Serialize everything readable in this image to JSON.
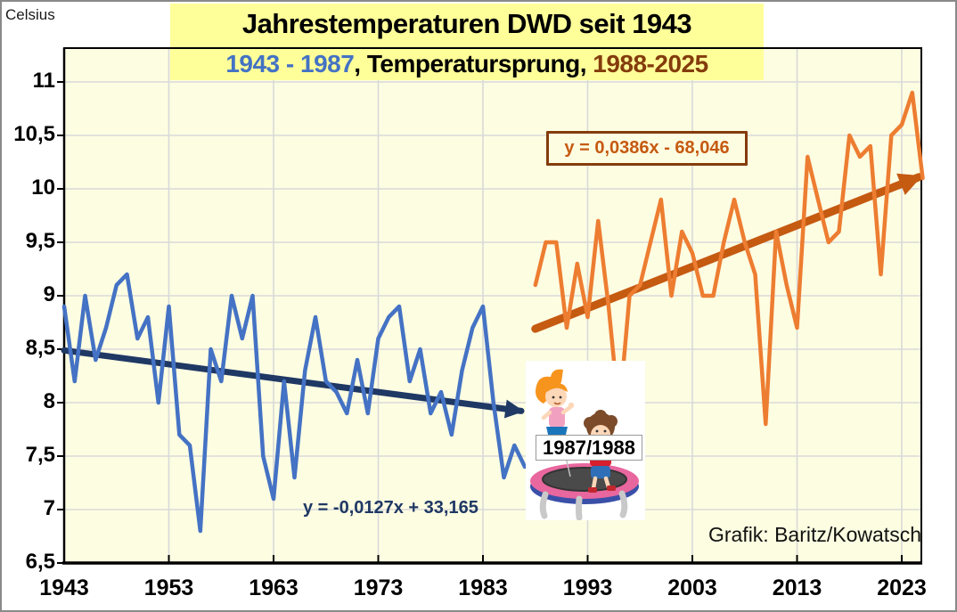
{
  "chart_data": {
    "type": "line",
    "title": "Jahrestemperaturen DWD seit 1943",
    "subtitle_parts": [
      {
        "text": "1943 - 1987",
        "color": "#4472C4"
      },
      {
        "text": ", Temperatursprung, ",
        "color": "#000000"
      },
      {
        "text": "1988-2025",
        "color": "#843C0C"
      }
    ],
    "y_axis": {
      "title": "Celsius",
      "values": [
        11,
        10.5,
        10,
        9.5,
        9,
        8.5,
        8,
        7.5,
        7,
        6.5
      ],
      "labels": [
        "11",
        "10,5",
        "10",
        "9,5",
        "9",
        "8,5",
        "8",
        "7,5",
        "7",
        "6,5"
      ],
      "min": 6.5,
      "max": 11
    },
    "x_axis": {
      "years": [
        1943,
        1953,
        1963,
        1973,
        1983,
        1993,
        2003,
        2013,
        2023
      ],
      "labels": [
        "1943",
        "1953",
        "1963",
        "1973",
        "1983",
        "1993",
        "2003",
        "2013",
        "2023"
      ],
      "min": 1943,
      "max": 2025
    },
    "grid": true,
    "series": [
      {
        "name": "1943 - 1987",
        "color": "#4472C4",
        "start_year": 1943,
        "values": [
          8.9,
          8.2,
          9.0,
          8.4,
          8.7,
          9.1,
          9.2,
          8.6,
          8.8,
          8.0,
          8.9,
          7.7,
          7.6,
          6.8,
          8.5,
          8.2,
          9.0,
          8.6,
          9.0,
          7.5,
          7.1,
          8.2,
          7.3,
          8.3,
          8.8,
          8.2,
          8.1,
          7.9,
          8.4,
          7.9,
          8.6,
          8.8,
          8.9,
          8.2,
          8.5,
          7.9,
          8.1,
          7.7,
          8.3,
          8.7,
          8.9,
          8.0,
          7.3,
          7.6,
          7.4
        ]
      },
      {
        "name": "1988-2025",
        "color": "#ED7D31",
        "start_year": 1988,
        "values": [
          9.1,
          9.5,
          9.5,
          8.7,
          9.3,
          8.8,
          9.7,
          8.9,
          7.9,
          9.0,
          9.1,
          9.5,
          9.9,
          9.0,
          9.6,
          9.4,
          9.0,
          9.0,
          9.5,
          9.9,
          9.5,
          9.2,
          7.8,
          9.6,
          9.1,
          8.7,
          10.3,
          9.9,
          9.5,
          9.6,
          10.5,
          10.3,
          10.4,
          9.2,
          10.5,
          10.6,
          10.9,
          10.1
        ]
      }
    ],
    "trends": [
      {
        "label": "y = -0,0127x + 33,165",
        "slope": -0.0127,
        "intercept": 33.165,
        "year_start": 1943,
        "year_end": 1987,
        "color": "#1F3864",
        "width": 7
      },
      {
        "label": "y = 0,0386x - 68,046",
        "slope": 0.0386,
        "intercept": -68.046,
        "year_start": 1988,
        "year_end": 2025,
        "color": "#C55A11",
        "width": 9
      }
    ],
    "annotations": {
      "jump_label": "1987/1988",
      "credit": "Grafik: Baritz/Kowatsch"
    },
    "colors": {
      "plot_background": "#FDFDE2",
      "title_box_background": "#FFFF99",
      "gridline": "#D9D9D9",
      "axis": "#000000"
    }
  }
}
